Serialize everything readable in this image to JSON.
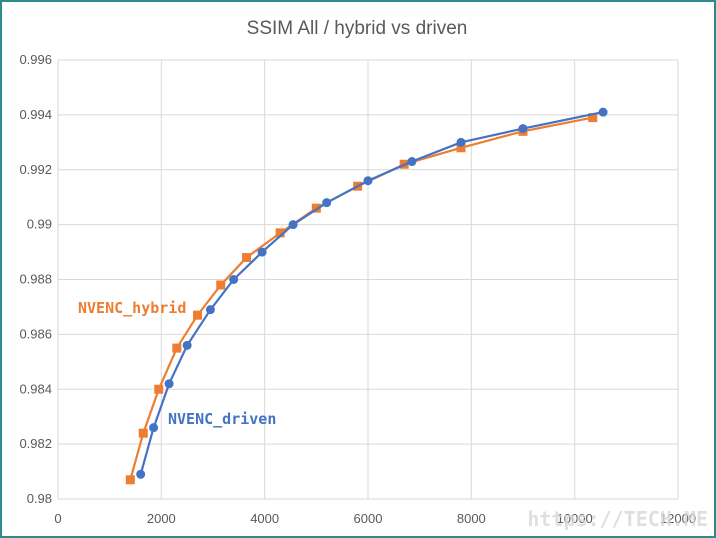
{
  "chart_data": {
    "type": "line",
    "title": "SSIM All / hybrid vs driven",
    "xlabel": "",
    "ylabel": "",
    "xlim": [
      0,
      12000
    ],
    "ylim": [
      0.98,
      0.996
    ],
    "xticks": [
      "0",
      "2000",
      "4000",
      "6000",
      "8000",
      "10000",
      "12000"
    ],
    "yticks": [
      "0.98",
      "0.982",
      "0.984",
      "0.986",
      "0.988",
      "0.99",
      "0.992",
      "0.994",
      "0.996"
    ],
    "grid": true,
    "series": [
      {
        "name": "NVENC_hybrid",
        "color": "#ed7d31",
        "marker": "square",
        "x": [
          1400,
          1650,
          1950,
          2300,
          2700,
          3150,
          3650,
          4300,
          5000,
          5800,
          6700,
          7800,
          9000,
          10350
        ],
        "y": [
          0.9807,
          0.9824,
          0.984,
          0.9855,
          0.9867,
          0.9878,
          0.9888,
          0.9897,
          0.9906,
          0.9914,
          0.9922,
          0.9928,
          0.9934,
          0.9939
        ]
      },
      {
        "name": "NVENC_driven",
        "color": "#4472c4",
        "marker": "circle",
        "x": [
          1600,
          1850,
          2150,
          2500,
          2950,
          3400,
          3950,
          4550,
          5200,
          6000,
          6850,
          7800,
          9000,
          10550
        ],
        "y": [
          0.9809,
          0.9826,
          0.9842,
          0.9856,
          0.9869,
          0.988,
          0.989,
          0.99,
          0.9908,
          0.9916,
          0.9923,
          0.993,
          0.9935,
          0.9941
        ]
      }
    ]
  },
  "watermark": "https://TECH.ME"
}
